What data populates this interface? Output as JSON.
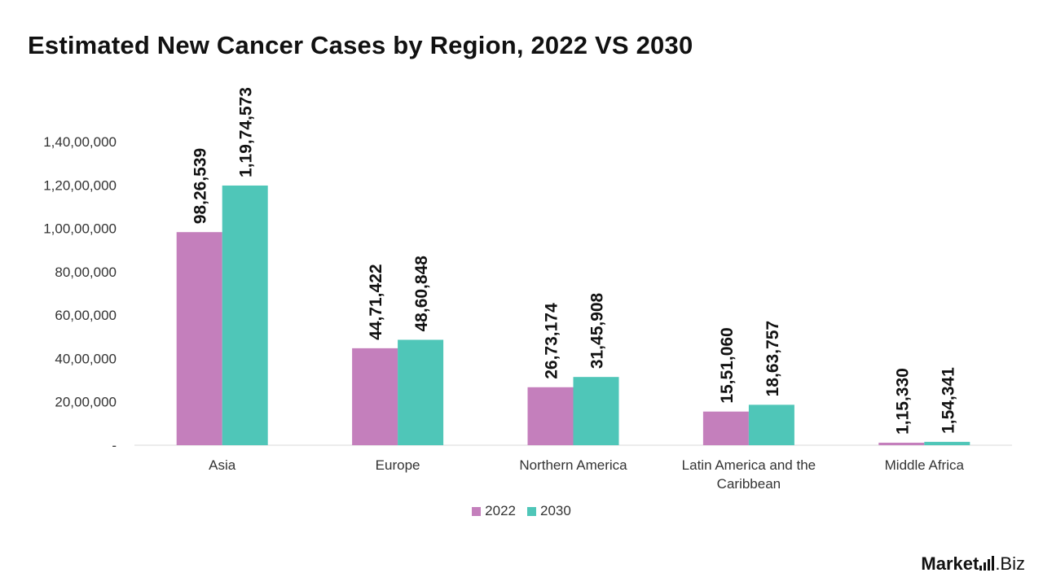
{
  "title": "Estimated New Cancer Cases by Region, 2022 VS 2030",
  "chart_data": {
    "type": "bar",
    "title": "Estimated New Cancer Cases by Region, 2022 VS 2030",
    "categories": [
      [
        "Asia"
      ],
      [
        "Europe"
      ],
      [
        "Northern America"
      ],
      [
        "Latin America and the",
        "Caribbean"
      ],
      [
        "Middle Africa"
      ]
    ],
    "series": [
      {
        "name": "2022",
        "color": "#C47FBC",
        "values": [
          9826539,
          4471422,
          2673174,
          1551060,
          115330
        ],
        "labels": [
          "98,26,539",
          "44,71,422",
          "26,73,174",
          "15,51,060",
          "1,15,330"
        ]
      },
      {
        "name": "2030",
        "color": "#4FC6B8",
        "values": [
          11974573,
          4860848,
          3145908,
          1863757,
          154341
        ],
        "labels": [
          "1,19,74,573",
          "48,60,848",
          "31,45,908",
          "18,63,757",
          "1,54,341"
        ]
      }
    ],
    "ylim": [
      0,
      14000000
    ],
    "yticks": [
      {
        "value": 0,
        "label": "-"
      },
      {
        "value": 2000000,
        "label": "20,00,000"
      },
      {
        "value": 4000000,
        "label": "40,00,000"
      },
      {
        "value": 6000000,
        "label": "60,00,000"
      },
      {
        "value": 8000000,
        "label": "80,00,000"
      },
      {
        "value": 10000000,
        "label": "1,00,00,000"
      },
      {
        "value": 12000000,
        "label": "1,20,00,000"
      },
      {
        "value": 14000000,
        "label": "1,40,00,000"
      }
    ],
    "grid": false,
    "legend_position": "bottom"
  },
  "brand": {
    "name": "Market",
    "suffix": ".Biz"
  }
}
